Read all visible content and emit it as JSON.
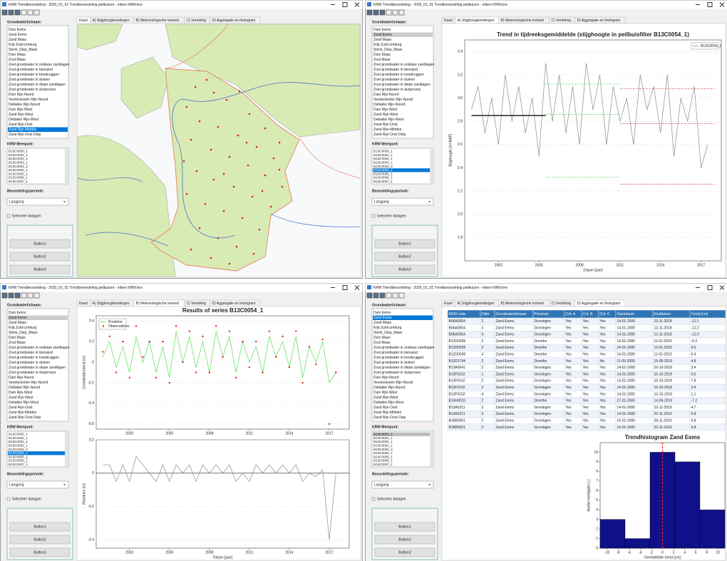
{
  "window_title": "KRW Trendbeoordeling - 2020_01_01 Trendbeoordeling peilbuizen - ellsen KRW.krw",
  "tabs": [
    "Kaart",
    "A) Stijghoogtemetingen",
    "B) Meteorologische invloed",
    "C) Verdeling",
    "D) Aggregatie en histogram"
  ],
  "sidebar": {
    "groundwater_label": "Grondwaterlichaam:",
    "groundwater_bodies": [
      "Duin Eems",
      "Zand Eems",
      "Zand Maas",
      "Krijt Zuid-Limburg",
      "Slenk_Diep_Maas",
      "Duin Maas",
      "Zout Maas",
      "Zoet grondwater in ondiepe zandlagen",
      "Zout grondwater in tiensand",
      "Zoet grondwater in kreekruggen",
      "Zoet grondwater in duinen",
      "Zout grondwater in diepe zandlagen",
      "Zoet grondwater in dunproxes",
      "Duin Rijn-Noord",
      "Veenkoloniën Rijn-Noord",
      "Deltaklei Rijn-Noord",
      "Duin Rijn-West",
      "Zand Rijn-West",
      "Deltaklei Rijn-West",
      "Zand Rijn-Oost",
      "Zand Rijn-Midden",
      "Zand Rijn-Oost Diep"
    ],
    "meetpunt_label": "KRW Meetpunt:",
    "meetpunten": [
      "B13C0050_1",
      "B13C0051_1",
      "B13C0052_1",
      "B13C0053_1",
      "B13C0053_2",
      "B13C0054_1",
      "B13C0055_1",
      "B13C0056_1",
      "B13C0057_1"
    ],
    "period_label": "Beoordelingsperiode:",
    "period": "Langjarig",
    "checkbox": "Selecteer datagen",
    "buttons": [
      "Button1",
      "Button2",
      "Button3"
    ]
  },
  "trend_table": {
    "columns": [
      "KRW code",
      "Filter",
      "Grondwaterlichaam",
      "Provincie",
      "Crit. A",
      "Crit. B",
      "Crit. C",
      "Startdatum",
      "Einddatum",
      "Trend [cm]"
    ],
    "rows": [
      [
        "B06A0054",
        "2",
        "Zand Eems",
        "Groningen",
        "Yes",
        "Yes",
        "Yes",
        "14-01-2000",
        "13-11-2018",
        "-12.1"
      ],
      [
        "B06A0054",
        "3",
        "Zand Eems",
        "Groningen",
        "Yes",
        "Yes",
        "Yes",
        "14-01-2000",
        "12-11-2018",
        "-12.2"
      ],
      [
        "B06A0054",
        "4",
        "Zand Eems",
        "Groningen",
        "Yes",
        "Yes",
        "Yes",
        "14-01-2000",
        "12-11-2018",
        "-12.0"
      ],
      [
        "B12D0099",
        "2",
        "Zand Eems",
        "Drenthe",
        "Yes",
        "Yes",
        "Yes",
        "14-01-2000",
        "11-01-2019",
        "-0.2"
      ],
      [
        "B12D0099",
        "3",
        "Zand Eems",
        "Drenthe",
        "Yes",
        "Yes",
        "Yes",
        "14-01-2000",
        "11-01-2019",
        "0.6"
      ],
      [
        "B12D0099",
        "4",
        "Zand Eems",
        "Drenthe",
        "Yes",
        "Yes",
        "Yes",
        "14-01-2000",
        "11-01-2019",
        "0.4"
      ],
      [
        "B12D1794",
        "2",
        "Zand Eems",
        "Drenthe",
        "Yes",
        "Yes",
        "No",
        "11-09-2009",
        "15-05-2019",
        "4.8"
      ],
      [
        "B13A0041",
        "2",
        "Zand Eems",
        "Groningen",
        "Yes",
        "Yes",
        "Yes",
        "14-01-2000",
        "10-10-2019",
        "3.4"
      ],
      [
        "B13F0152",
        "1",
        "Zand Eems",
        "Groningen",
        "Yes",
        "Yes",
        "Yes",
        "14-01-2000",
        "10-10-2019",
        "5.6"
      ],
      [
        "B13F0152",
        "2",
        "Zand Eems",
        "Groningen",
        "Yes",
        "Yes",
        "Yes",
        "14-01-2000",
        "10-10-2019",
        "7.8"
      ],
      [
        "B13F0152",
        "3",
        "Zand Eems",
        "Groningen",
        "Yes",
        "Yes",
        "Yes",
        "14-01-2000",
        "10-10-2019",
        "2.4"
      ],
      [
        "B13F0152",
        "4",
        "Zand Eems",
        "Groningen",
        "Yes",
        "Yes",
        "Yes",
        "14-01-2000",
        "10-10-2019",
        "1.1"
      ],
      [
        "B13H0010",
        "2",
        "Zand Eems",
        "Drenthe",
        "Yes",
        "Yes",
        "Yes",
        "27-01-2000",
        "14-09-2019",
        "-7.2"
      ],
      [
        "B13A0211",
        "2",
        "Zand Eems",
        "Groningen",
        "Yes",
        "Yes",
        "Yes",
        "14-01-2000",
        "22-11-2019",
        "4.7"
      ],
      [
        "B13A0211",
        "3",
        "Zand Eems",
        "Groningen",
        "Yes",
        "Yes",
        "Yes",
        "14-01-2000",
        "22-11-2019",
        "5.8"
      ],
      [
        "B18B0001",
        "2",
        "Zand Eems",
        "Groningen",
        "Yes",
        "Yes",
        "Yes",
        "15-01-2000",
        "28-11-2019",
        "6.8"
      ],
      [
        "B18B0001",
        "3",
        "Zand Eems",
        "Groningen",
        "Yes",
        "Yes",
        "Yes",
        "15-01-2000",
        "22-11-2019",
        "9.8"
      ]
    ]
  },
  "chart_data": [
    {
      "type": "line",
      "title": "Trend in tijdreeksgemiddelde (stijghoogte in peilbuisfilter B13C0054_1)",
      "xlabel": "Datum [jaar]",
      "ylabel": "Stijghoogte [m+NAP]",
      "x": [
        2000,
        2000.5,
        2001,
        2001.5,
        2002,
        2002.5,
        2003,
        2003.5,
        2004,
        2004.5,
        2005,
        2005.5,
        2006,
        2006.5,
        2007,
        2007.5,
        2008,
        2008.5,
        2009,
        2009.5,
        2010,
        2010.5,
        2011,
        2011.5,
        2012,
        2012.5,
        2013,
        2013.5,
        2014,
        2014.5,
        2015,
        2015.5,
        2016,
        2016.5,
        2017,
        2017.5
      ],
      "series": [
        {
          "name": "B13C0054_1",
          "color": "#8a8a8a",
          "values": [
            2.9,
            3.1,
            2.7,
            3.0,
            2.6,
            3.2,
            2.8,
            3.1,
            2.7,
            3.0,
            2.5,
            3.3,
            2.8,
            3.2,
            2.7,
            3.1,
            2.6,
            3.3,
            2.9,
            3.2,
            2.6,
            3.1,
            2.8,
            3.0,
            2.6,
            3.2,
            2.9,
            3.1,
            2.7,
            3.2,
            2.5,
            3.0,
            2.8,
            3.1,
            2.4,
            2.6
          ]
        }
      ],
      "trend_segments": [
        {
          "x": [
            2000,
            2005.5
          ],
          "value": 2.85,
          "color": "#333333"
        },
        {
          "x": [
            2005.5,
            2011
          ],
          "value": 3.12,
          "color": "#7fd67f"
        },
        {
          "x": [
            2005.5,
            2011
          ],
          "value": 2.86,
          "color": "#7fd67f"
        },
        {
          "x": [
            2005.5,
            2011
          ],
          "value": 2.32,
          "color": "#7fd67f"
        },
        {
          "x": [
            2011,
            2018
          ],
          "value": 3.08,
          "color": "#e06060"
        },
        {
          "x": [
            2011,
            2018
          ],
          "value": 2.78,
          "color": "#e06060"
        },
        {
          "x": [
            2011,
            2018
          ],
          "value": 2.26,
          "color": "#e06060"
        }
      ],
      "xlim": [
        1999.5,
        2018.5
      ],
      "xticks": [
        2002,
        2005,
        2008,
        2011,
        2014,
        2017
      ],
      "ylim": [
        1.6,
        3.5
      ],
      "yticks": [
        1.8,
        {
          "value": 2,
          "label": "2.0"
        },
        2.2,
        2.4,
        2.6,
        2.8,
        {
          "value": 3,
          "label": "3.0"
        },
        3.2,
        3.4
      ],
      "grid": true,
      "legend": "upper right"
    },
    {
      "type": "line",
      "title": "Results of series B13C0054_1",
      "ylabel": "Grondwaterstand [m]",
      "x": [
        2000,
        2000.5,
        2001,
        2001.5,
        2002,
        2002.5,
        2003,
        2003.5,
        2004,
        2004.5,
        2005,
        2005.5,
        2006,
        2006.5,
        2007,
        2007.5,
        2008,
        2008.5,
        2009,
        2009.5,
        2010,
        2010.5,
        2011,
        2011.5,
        2012,
        2012.5,
        2013,
        2013.5,
        2014,
        2014.5,
        2015,
        2015.5,
        2016,
        2016.5,
        2017,
        2017.5
      ],
      "series": [
        {
          "name": "Predictor",
          "color": "#55dd55",
          "mode": "line",
          "values": [
            0.05,
            0.2,
            -0.05,
            0.15,
            -0.1,
            0.25,
            0.0,
            0.2,
            -0.1,
            0.15,
            -0.15,
            0.3,
            0.0,
            0.25,
            -0.05,
            0.2,
            -0.1,
            0.3,
            0.05,
            0.25,
            -0.1,
            0.2,
            0.0,
            0.15,
            -0.1,
            0.25,
            0.05,
            0.2,
            -0.05,
            0.25,
            -0.15,
            0.15,
            0.0,
            0.2,
            -0.2,
            -0.1
          ]
        },
        {
          "name": "Observations",
          "color": "#e02020",
          "mode": "markers",
          "values": [
            0.1,
            0.25,
            -0.1,
            0.2,
            -0.15,
            0.35,
            0.05,
            0.2,
            -0.15,
            0.2,
            -0.2,
            0.35,
            0.0,
            0.3,
            -0.1,
            0.25,
            -0.1,
            0.35,
            0.05,
            0.3,
            -0.15,
            0.2,
            -0.05,
            0.2,
            -0.1,
            0.3,
            0.05,
            0.25,
            -0.05,
            0.3,
            -0.2,
            0.15,
            -0.02,
            0.22,
            -0.6,
            -0.1
          ]
        }
      ],
      "xlim": [
        1999.5,
        2018.5
      ],
      "xticks": [
        2002,
        2005,
        2008,
        2011,
        2014,
        2017
      ],
      "ylim": [
        -0.65,
        0.45
      ],
      "yticks": [
        -0.6,
        -0.4,
        -0.2,
        0,
        0.2,
        0.4
      ],
      "grid": true,
      "legend": "upper left"
    },
    {
      "type": "line",
      "xlabel": "Datum [jaar]",
      "ylabel": "Residuen [m]",
      "x": [
        2000,
        2000.5,
        2001,
        2001.5,
        2002,
        2002.5,
        2003,
        2003.5,
        2004,
        2004.5,
        2005,
        2005.5,
        2006,
        2006.5,
        2007,
        2007.5,
        2008,
        2008.5,
        2009,
        2009.5,
        2010,
        2010.5,
        2011,
        2011.5,
        2012,
        2012.5,
        2013,
        2013.5,
        2014,
        2014.5,
        2015,
        2015.5,
        2016,
        2016.5,
        2017,
        2017.5
      ],
      "values": [
        0.05,
        0.05,
        -0.05,
        0.05,
        -0.05,
        0.1,
        0.05,
        0.0,
        -0.05,
        0.05,
        -0.05,
        0.05,
        0.0,
        0.05,
        -0.05,
        0.05,
        0.0,
        0.05,
        0.0,
        0.05,
        -0.05,
        0.0,
        -0.05,
        0.05,
        0.0,
        0.05,
        0.0,
        0.05,
        0.0,
        0.05,
        -0.05,
        0.0,
        -0.02,
        0.02,
        -0.4,
        0.0
      ],
      "color": "#8a8a8a",
      "xlim": [
        1999.5,
        2018.5
      ],
      "xticks": [
        2002,
        2005,
        2008,
        2011,
        2014,
        2017
      ],
      "ylim": [
        -0.45,
        0.2
      ],
      "yticks": [
        -0.4,
        -0.2,
        0,
        0.2
      ],
      "grid": true
    },
    {
      "type": "histogram",
      "title": "Trendhistogram Zand Eems",
      "xlabel": "Gemiddelde trend [cm]",
      "ylabel": "Aantal meetgaten [-]",
      "bins": [
        -11.25,
        -6.75,
        -2.25,
        2.25,
        6.75,
        11.25
      ],
      "counts": [
        3,
        1,
        10,
        9,
        4
      ],
      "color": "#10108a",
      "mean_line": 0,
      "xlim": [
        -11.25,
        11.25
      ],
      "xticks": [
        -10,
        -8,
        -6,
        -4,
        -2,
        0,
        2,
        4,
        6,
        8,
        10
      ],
      "ylim": [
        0,
        11
      ],
      "yticks": [
        0,
        1,
        2,
        3,
        4,
        5,
        6,
        7,
        8,
        9,
        10
      ],
      "grid": false
    }
  ]
}
